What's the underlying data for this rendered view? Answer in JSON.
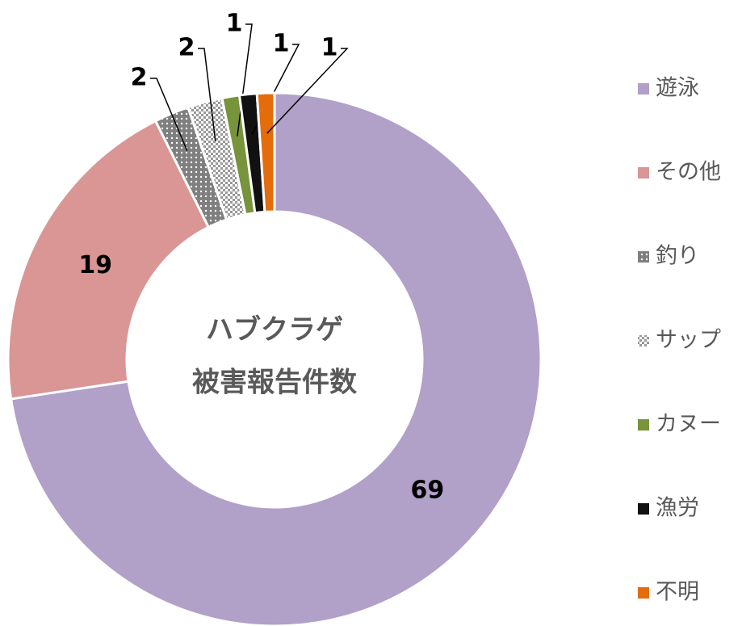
{
  "chart_data": {
    "type": "donut",
    "center_text": [
      "ハブクラゲ",
      "被害報告件数"
    ],
    "categories": [
      "遊泳",
      "その他",
      "釣り",
      "サップ",
      "カヌー",
      "漁労",
      "不明"
    ],
    "values": [
      69,
      19,
      2,
      2,
      1,
      1,
      1
    ],
    "colors": [
      "#b1a0c7",
      "#d99694",
      "#7f7f7f",
      "#bfbfbf",
      "#77933c",
      "#111111",
      "#e46c0a"
    ],
    "patterns": [
      null,
      null,
      "dots",
      "checker",
      null,
      null,
      null
    ]
  }
}
